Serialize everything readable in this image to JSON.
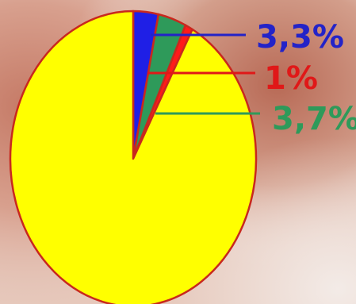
{
  "chart_data": {
    "type": "pie",
    "title": "",
    "slices": [
      {
        "label": "3,3%",
        "value": 3.3,
        "color": "#1f1fe6",
        "label_color": "#2323c8"
      },
      {
        "label": "3,7%",
        "value": 3.7,
        "color": "#2e9a5a",
        "label_color": "#2e9a5a"
      },
      {
        "label": "1%",
        "value": 1.0,
        "color": "#ff1a1a",
        "label_color": "#e01818"
      },
      {
        "label": "",
        "value": 92.0,
        "color": "#ffff00",
        "label_color": ""
      }
    ],
    "edge_color": "#c8281e",
    "background": "photo"
  }
}
